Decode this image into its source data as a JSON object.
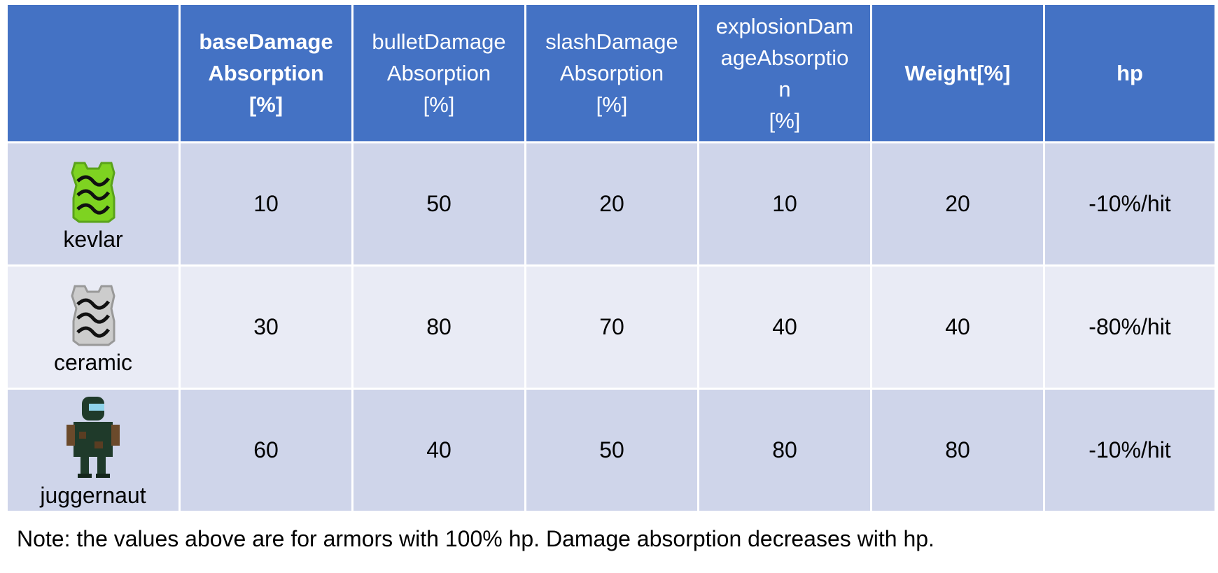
{
  "table": {
    "headers": [
      {
        "label": "",
        "bold": false
      },
      {
        "label": "baseDamage\nAbsorption\n[%]",
        "bold": true
      },
      {
        "label": "bulletDamage\nAbsorption\n[%]",
        "bold": false
      },
      {
        "label": "slashDamage\nAbsorption\n[%]",
        "bold": false
      },
      {
        "label": "explosionDam\nageAbsorptio\nn\n[%]",
        "bold": false
      },
      {
        "label": "Weight[%]",
        "bold": true
      },
      {
        "label": "hp",
        "bold": true
      }
    ],
    "rows": [
      {
        "name": "kevlar",
        "icon": "kevlar-vest-icon",
        "values": [
          "10",
          "50",
          "20",
          "10",
          "20",
          "-10%/hit"
        ]
      },
      {
        "name": "ceramic",
        "icon": "ceramic-vest-icon",
        "values": [
          "30",
          "80",
          "70",
          "40",
          "40",
          "-80%/hit"
        ]
      },
      {
        "name": "juggernaut",
        "icon": "juggernaut-suit-icon",
        "values": [
          "60",
          "40",
          "50",
          "80",
          "80",
          "-10%/hit"
        ]
      }
    ]
  },
  "colors": {
    "header_bg": "#4472c4",
    "row_dark": "#cfd5ea",
    "row_light": "#e9ebf5",
    "kevlar_green": "#7ed321",
    "ceramic_gray": "#c8c8c8",
    "juggernaut_green": "#1f3a2a"
  },
  "note": "Note: the values above are for armors with 100% hp. Damage absorption decreases with hp."
}
